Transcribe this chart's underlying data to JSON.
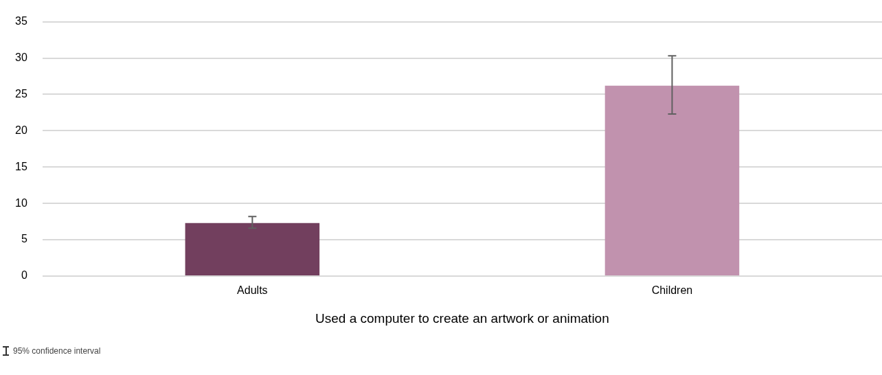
{
  "chart_data": {
    "type": "bar",
    "xlabel": "Used a computer to create an artwork or animation",
    "categories": [
      "Adults",
      "Children"
    ],
    "values": [
      7.3,
      26.2
    ],
    "colors": [
      "#723f5e",
      "#c192ae"
    ],
    "errors": [
      [
        6.6,
        8.2
      ],
      [
        22.3,
        30.3
      ]
    ],
    "ylim": [
      0,
      35
    ],
    "yticks": [
      0,
      5,
      10,
      15,
      20,
      25,
      30,
      35
    ],
    "grid": "y",
    "legend": false,
    "annotations": [
      "95% confidence interval"
    ]
  }
}
